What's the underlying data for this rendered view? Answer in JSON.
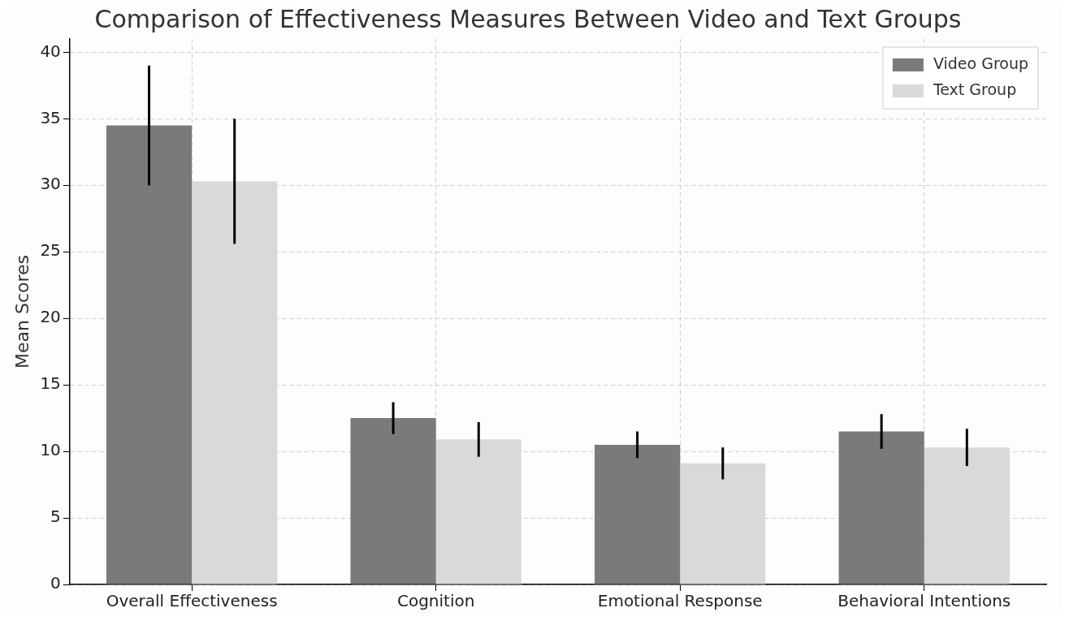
{
  "chart_data": {
    "type": "bar",
    "title": "Comparison of Effectiveness Measures Between Video and Text Groups",
    "ylabel": "Mean Scores",
    "categories": [
      "Overall Effectiveness",
      "Cognition",
      "Emotional Response",
      "Behavioral Intentions"
    ],
    "series": [
      {
        "name": "Video Group",
        "color": "#7a7a7a",
        "values": [
          34.5,
          12.5,
          10.5,
          11.5
        ],
        "errors": [
          4.5,
          1.2,
          1.0,
          1.3
        ]
      },
      {
        "name": "Text Group",
        "color": "#d9d9d9",
        "values": [
          30.3,
          10.9,
          9.1,
          10.3
        ],
        "errors": [
          4.7,
          1.3,
          1.2,
          1.4
        ]
      }
    ],
    "ylim": [
      0,
      41
    ],
    "yticks": [
      0,
      5,
      10,
      15,
      20,
      25,
      30,
      35,
      40
    ],
    "grid": true,
    "legend": "top right"
  }
}
